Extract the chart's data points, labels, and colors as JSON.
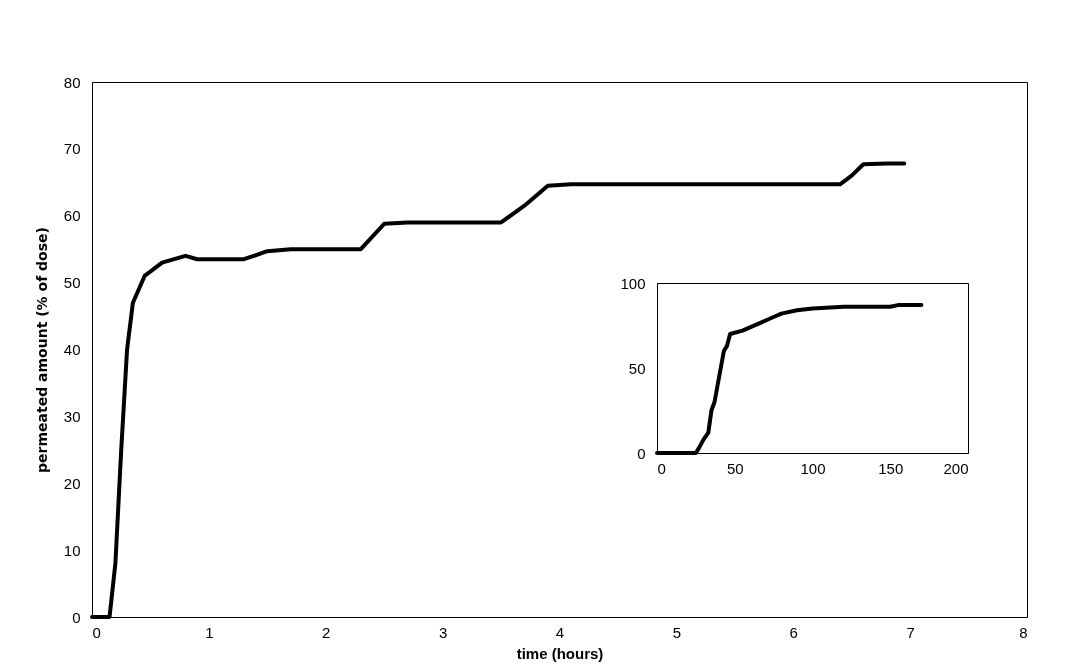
{
  "chart_data": [
    {
      "type": "line",
      "xlabel": "time (hours)",
      "ylabel": "permeated amount (% of dose)",
      "x": [
        0,
        0.15,
        0.2,
        0.25,
        0.3,
        0.35,
        0.45,
        0.6,
        0.8,
        0.9,
        1.3,
        1.5,
        1.7,
        2.2,
        2.3,
        2.5,
        2.7,
        3.4,
        3.5,
        3.7,
        3.9,
        4.1,
        6.2,
        6.4,
        6.5,
        6.6,
        6.8,
        6.95
      ],
      "series": [
        {
          "color": "#000000",
          "values": [
            0,
            0,
            8,
            25,
            40,
            47,
            51,
            53,
            54,
            53.5,
            53.5,
            54.7,
            55,
            55,
            55,
            58.8,
            59,
            59,
            59,
            61.5,
            64.5,
            64.7,
            64.7,
            64.7,
            66,
            67.7,
            67.8,
            67.8
          ]
        }
      ],
      "xlim": [
        0,
        8
      ],
      "xticks": [
        0,
        1,
        2,
        3,
        4,
        5,
        6,
        7,
        8
      ],
      "ylim": [
        0,
        80
      ],
      "yticks": [
        0,
        10,
        20,
        30,
        40,
        50,
        60,
        70,
        80
      ],
      "grid": false,
      "line_style": "solid",
      "marker": "none"
    },
    {
      "type": "line",
      "x": [
        0,
        25,
        27,
        30,
        33,
        35,
        37,
        40,
        43,
        45,
        47,
        55,
        65,
        75,
        80,
        90,
        100,
        120,
        150,
        155,
        170
      ],
      "series": [
        {
          "color": "#000000",
          "values": [
            0,
            0,
            3,
            8,
            12,
            25,
            30,
            45,
            60,
            63,
            70,
            72,
            76,
            80,
            82,
            84,
            85,
            86,
            86,
            87,
            87
          ]
        }
      ],
      "xlim": [
        0,
        200
      ],
      "xticks": [
        0,
        50,
        100,
        150,
        200
      ],
      "ylim": [
        0,
        100
      ],
      "yticks": [
        0,
        50,
        100
      ],
      "grid": false,
      "line_style": "solid",
      "marker": "none"
    }
  ]
}
